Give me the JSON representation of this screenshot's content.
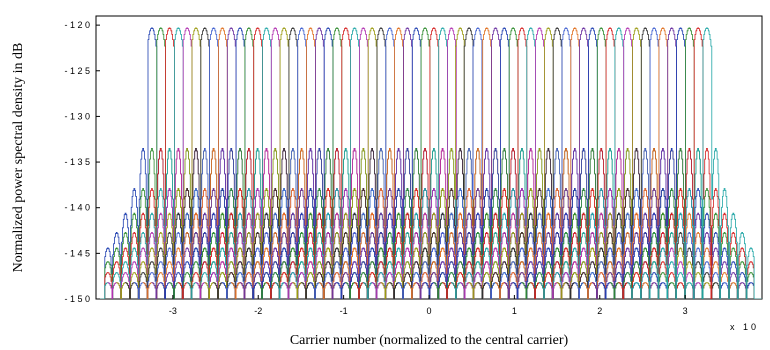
{
  "chart_data": {
    "type": "line",
    "title": "",
    "xlabel": "Carrier number (normalized to the central carrier)",
    "ylabel": "Normalized power spectral density in dB",
    "x_exponent_label": "x 10",
    "xlim": [
      -3.9,
      3.9
    ],
    "ylim": [
      -150,
      -119
    ],
    "x_ticks": [
      -3,
      -2,
      -1,
      0,
      1,
      2,
      3
    ],
    "x_tick_labels": [
      "-3",
      "-2",
      "-1",
      "0",
      "1",
      "2",
      "3"
    ],
    "y_ticks": [
      -150,
      -145,
      -140,
      -135,
      -130,
      -125,
      -120
    ],
    "y_tick_labels": [
      "- 1 5 0",
      "- 1 4 5",
      "- 1 4 0",
      "- 1 3 5",
      "- 1 3 0",
      "- 1 2 5",
      "- 1 2 0"
    ],
    "grid": false,
    "legend": "none",
    "series_description": {
      "carrier_count": 64,
      "main_lobe_peak_db": -120.3,
      "main_lobe_x_range": [
        -3.25,
        3.25
      ],
      "sidelobe_levels_db": [
        -133.5,
        -137.9,
        -140.6,
        -142.7,
        -144.4,
        -145.9,
        -147.1,
        -148.2
      ],
      "sidelobe_outer_extent": [
        -3.8,
        3.8
      ]
    },
    "series_colors": [
      "#1f3fb0",
      "#2e8b2e",
      "#d42020",
      "#1fa5a5",
      "#b030b0",
      "#9a9a10",
      "#303030",
      "#4060d0",
      "#e07020",
      "#6a2fa0"
    ]
  }
}
